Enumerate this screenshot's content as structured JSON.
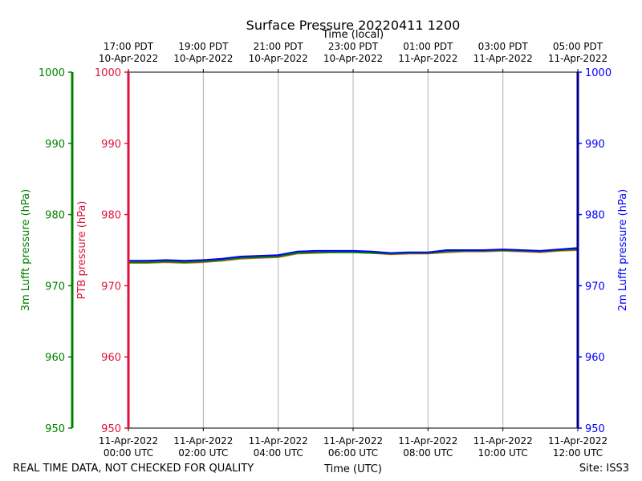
{
  "chart_data": {
    "type": "line",
    "title": "Surface Pressure 20220411 1200",
    "xlabel": "Time (UTC)",
    "x2label": "Time (local)",
    "left_outer_ylabel": "3m Lufft pressure (hPa)",
    "left_inner_ylabel": "PTB pressure (hPa)",
    "right_ylabel": "2m Lufft pressure (hPa)",
    "footer_left": "REAL TIME DATA, NOT CHECKED FOR QUALITY",
    "footer_right": "Site: ISS3",
    "ylim": [
      950,
      1000
    ],
    "xlim_hours": [
      0,
      12
    ],
    "y_ticks": [
      "950",
      "960",
      "970",
      "980",
      "990",
      "1000"
    ],
    "x_ticks_utc": [
      {
        "h": 0,
        "l1": "11-Apr-2022",
        "l2": "00:00 UTC"
      },
      {
        "h": 2,
        "l1": "11-Apr-2022",
        "l2": "02:00 UTC"
      },
      {
        "h": 4,
        "l1": "11-Apr-2022",
        "l2": "04:00 UTC"
      },
      {
        "h": 6,
        "l1": "11-Apr-2022",
        "l2": "06:00 UTC"
      },
      {
        "h": 8,
        "l1": "11-Apr-2022",
        "l2": "08:00 UTC"
      },
      {
        "h": 10,
        "l1": "11-Apr-2022",
        "l2": "10:00 UTC"
      },
      {
        "h": 12,
        "l1": "11-Apr-2022",
        "l2": "12:00 UTC"
      }
    ],
    "x_ticks_local": [
      {
        "h": 0,
        "l1": "17:00 PDT",
        "l2": "10-Apr-2022"
      },
      {
        "h": 2,
        "l1": "19:00 PDT",
        "l2": "10-Apr-2022"
      },
      {
        "h": 4,
        "l1": "21:00 PDT",
        "l2": "10-Apr-2022"
      },
      {
        "h": 6,
        "l1": "23:00 PDT",
        "l2": "10-Apr-2022"
      },
      {
        "h": 8,
        "l1": "01:00 PDT",
        "l2": "11-Apr-2022"
      },
      {
        "h": 10,
        "l1": "03:00 PDT",
        "l2": "11-Apr-2022"
      },
      {
        "h": 12,
        "l1": "05:00 PDT",
        "l2": "11-Apr-2022"
      }
    ],
    "colors": {
      "lufft3m": "#008000",
      "ptb": "#dc143c",
      "lufft2m": "#0000ff",
      "right_axis": "#00008b",
      "grid": "#b0b0b0"
    },
    "series": [
      {
        "name": "PTB pressure",
        "color": "#d2691e",
        "x": [
          0,
          0.5,
          1.0,
          1.5,
          2.0,
          2.5,
          3.0,
          3.5,
          4.0,
          4.5,
          5.0,
          5.5,
          6.0,
          6.5,
          7.0,
          7.5,
          8.0,
          8.5,
          9.0,
          9.5,
          10.0,
          10.5,
          11.0,
          11.5,
          12.0
        ],
        "values": [
          973.2,
          973.2,
          973.3,
          973.2,
          973.3,
          973.5,
          973.8,
          973.9,
          974.0,
          974.5,
          974.6,
          974.7,
          974.7,
          974.6,
          974.4,
          974.5,
          974.5,
          974.7,
          974.8,
          974.8,
          974.9,
          974.8,
          974.7,
          974.9,
          975.0
        ]
      },
      {
        "name": "3m Lufft pressure",
        "color": "#008000",
        "x": [
          0,
          0.5,
          1.0,
          1.5,
          2.0,
          2.5,
          3.0,
          3.5,
          4.0,
          4.5,
          5.0,
          5.5,
          6.0,
          6.5,
          7.0,
          7.5,
          8.0,
          8.5,
          9.0,
          9.5,
          10.0,
          10.5,
          11.0,
          11.5,
          12.0
        ],
        "values": [
          973.3,
          973.3,
          973.4,
          973.3,
          973.4,
          973.6,
          973.9,
          974.0,
          974.1,
          974.6,
          974.7,
          974.7,
          974.7,
          974.6,
          974.5,
          974.6,
          974.6,
          974.8,
          974.9,
          974.9,
          975.0,
          974.9,
          974.8,
          975.0,
          975.1
        ]
      },
      {
        "name": "2m Lufft pressure",
        "color": "#0000ff",
        "x": [
          0,
          0.5,
          1.0,
          1.5,
          2.0,
          2.5,
          3.0,
          3.5,
          4.0,
          4.5,
          5.0,
          5.5,
          6.0,
          6.5,
          7.0,
          7.5,
          8.0,
          8.5,
          9.0,
          9.5,
          10.0,
          10.5,
          11.0,
          11.5,
          12.0
        ],
        "values": [
          973.5,
          973.5,
          973.6,
          973.5,
          973.6,
          973.8,
          974.1,
          974.2,
          974.3,
          974.8,
          974.9,
          974.9,
          974.9,
          974.8,
          974.6,
          974.7,
          974.7,
          975.0,
          975.0,
          975.0,
          975.1,
          975.0,
          974.9,
          975.1,
          975.3
        ]
      }
    ]
  }
}
